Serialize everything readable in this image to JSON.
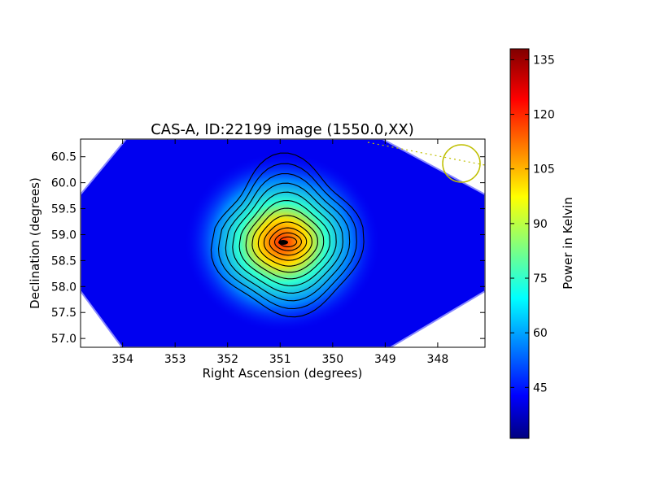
{
  "chart_data": {
    "type": "heatmap",
    "title": "CAS-A, ID:22199 image (1550.0,XX)",
    "xlabel": "Right Ascension (degrees)",
    "ylabel": "Declination (degrees)",
    "xlim": [
      354.8,
      347.1
    ],
    "ylim": [
      56.83,
      60.84
    ],
    "x_ticks": [
      354,
      353,
      352,
      351,
      350,
      349,
      348
    ],
    "y_ticks": [
      "57.0",
      "57.5",
      "58.0",
      "58.5",
      "59.0",
      "59.5",
      "60.0",
      "60.5"
    ],
    "colorbar": {
      "label": "Power in Kelvin",
      "range": [
        31,
        138
      ],
      "ticks": [
        45,
        60,
        75,
        90,
        105,
        120,
        135
      ],
      "colormap": "jet"
    },
    "peak": {
      "ra": 350.85,
      "dec": 58.86,
      "value": 137
    },
    "background_level": 40,
    "contour_count": 12,
    "beam_marker": {
      "ra": 347.5,
      "dec": 60.38,
      "color": "#bfbf00"
    }
  }
}
